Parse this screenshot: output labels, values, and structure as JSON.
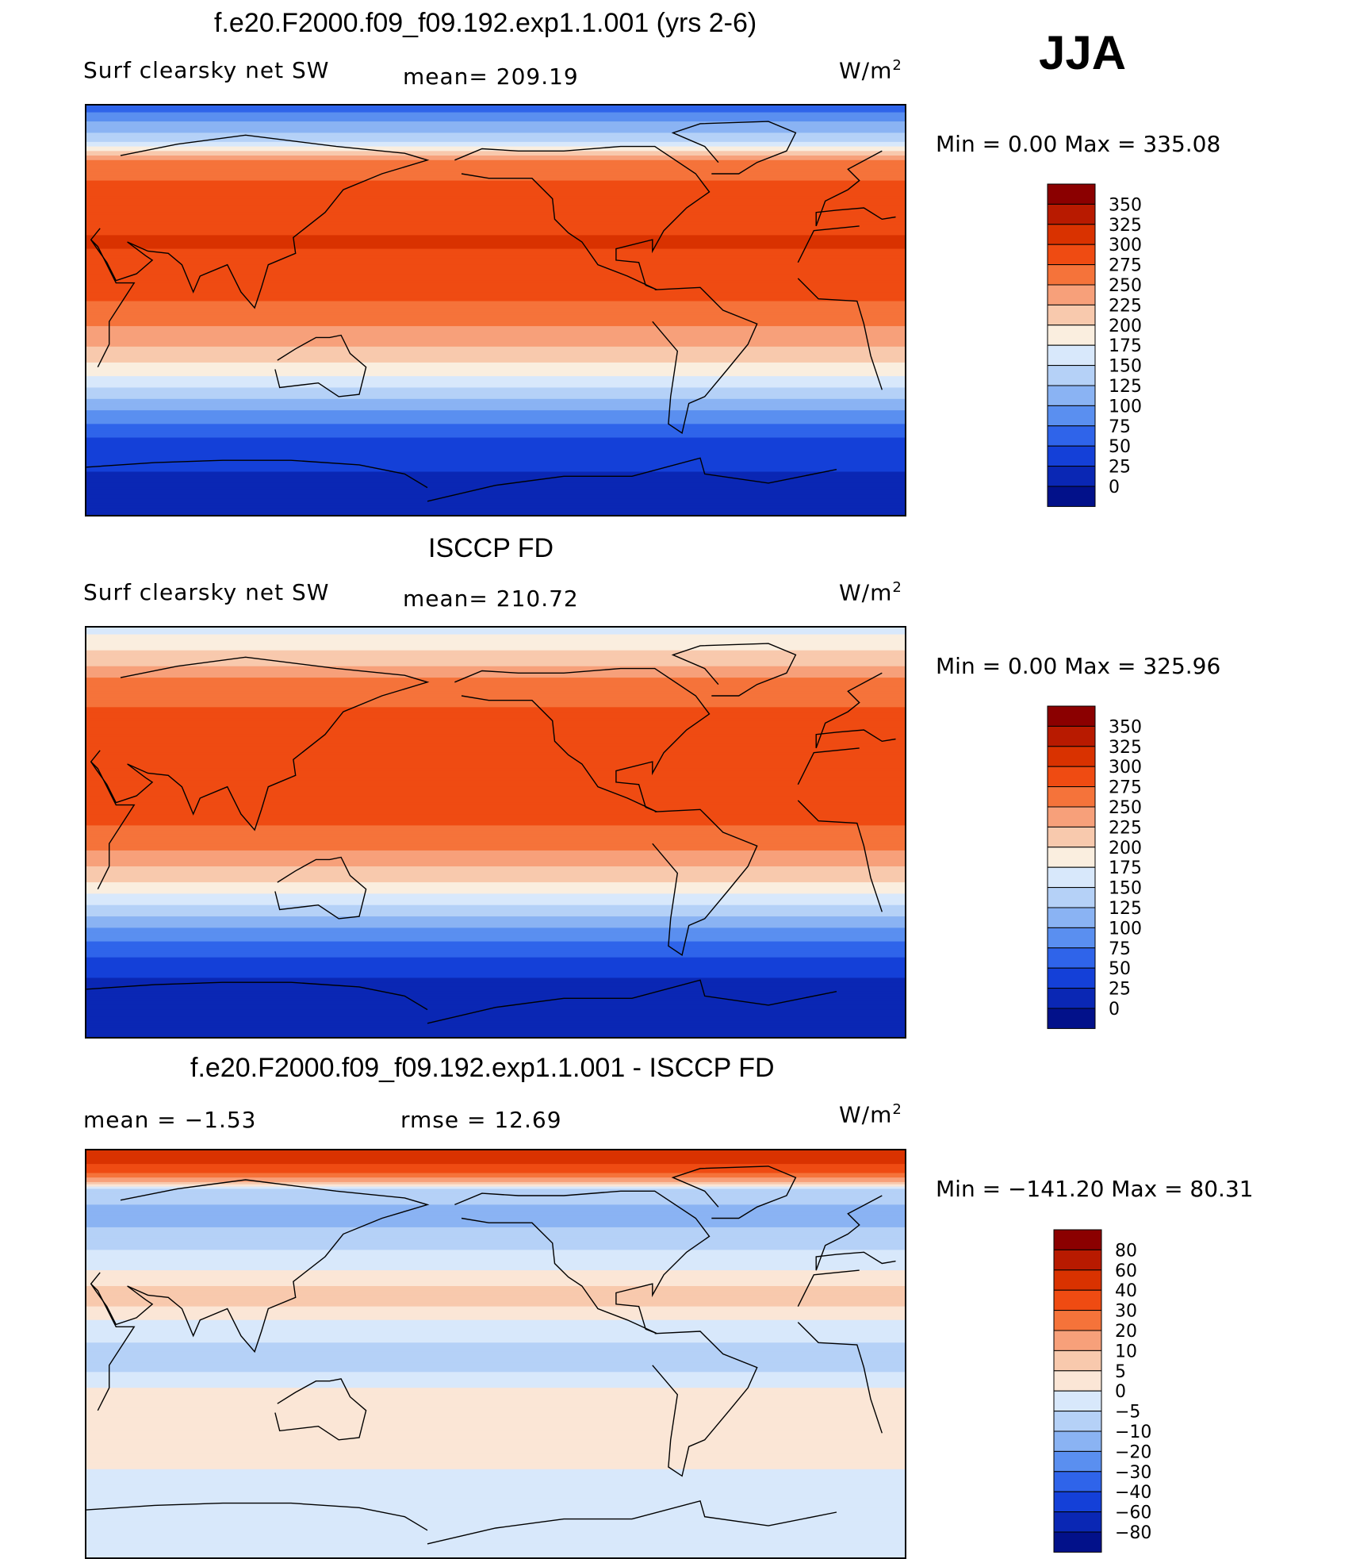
{
  "season": "JJA",
  "chart_data": [
    {
      "type": "heatmap",
      "title": "f.e20.F2000.f09_f09.192.exp1.1.001 (yrs 2-6)",
      "variable": "Surf clearsky net SW",
      "mean_label": "mean= 209.19",
      "mean": 209.19,
      "units_base": "W/m",
      "units_exp": "2",
      "minmax_label": "Min =    0.00 Max = 335.08",
      "min": 0.0,
      "max": 335.08,
      "levels": [
        "350",
        "325",
        "300",
        "275",
        "250",
        "225",
        "200",
        "175",
        "150",
        "125",
        "100",
        "75",
        "50",
        "25",
        "0"
      ],
      "colors": [
        "#8b0000",
        "#b81a00",
        "#d93200",
        "#ef4b12",
        "#f5733a",
        "#f7a07a",
        "#f8c9ad",
        "#faeedf",
        "#d8e8fb",
        "#b5d1f7",
        "#8ab3f3",
        "#5a8ff0",
        "#2f64ea",
        "#1440d8",
        "#0a27b4",
        "#02118a"
      ],
      "lat_profile": [
        [
          90,
          60
        ],
        [
          75,
          140
        ],
        [
          65,
          265
        ],
        [
          45,
          290
        ],
        [
          30,
          302
        ],
        [
          15,
          292
        ],
        [
          0,
          268
        ],
        [
          -12,
          238
        ],
        [
          -22,
          205
        ],
        [
          -32,
          160
        ],
        [
          -42,
          110
        ],
        [
          -52,
          65
        ],
        [
          -62,
          30
        ],
        [
          -90,
          14
        ]
      ]
    },
    {
      "type": "heatmap",
      "title": "ISCCP FD",
      "variable": "Surf clearsky net SW",
      "mean_label": "mean= 210.72",
      "mean": 210.72,
      "units_base": "W/m",
      "units_exp": "2",
      "minmax_label": "Min =    0.00 Max = 325.96",
      "min": 0.0,
      "max": 325.96,
      "levels": [
        "350",
        "325",
        "300",
        "275",
        "250",
        "225",
        "200",
        "175",
        "150",
        "125",
        "100",
        "75",
        "50",
        "25",
        "0"
      ],
      "colors": [
        "#8b0000",
        "#b81a00",
        "#d93200",
        "#ef4b12",
        "#f5733a",
        "#f7a07a",
        "#f8c9ad",
        "#faeedf",
        "#d8e8fb",
        "#b5d1f7",
        "#8ab3f3",
        "#5a8ff0",
        "#2f64ea",
        "#1440d8",
        "#0a27b4",
        "#02118a"
      ],
      "lat_profile": [
        [
          90,
          165
        ],
        [
          75,
          215
        ],
        [
          65,
          262
        ],
        [
          45,
          288
        ],
        [
          30,
          298
        ],
        [
          15,
          292
        ],
        [
          0,
          270
        ],
        [
          -12,
          238
        ],
        [
          -22,
          198
        ],
        [
          -32,
          150
        ],
        [
          -42,
          100
        ],
        [
          -52,
          58
        ],
        [
          -62,
          26
        ],
        [
          -90,
          14
        ]
      ]
    },
    {
      "type": "heatmap",
      "title": "f.e20.F2000.f09_f09.192.exp1.1.001 - ISCCP FD",
      "mean_label": "mean =   −1.53",
      "mean": -1.53,
      "rmse_label": "rmse =   12.69",
      "rmse": 12.69,
      "units_base": "W/m",
      "units_exp": "2",
      "minmax_label": "Min = −141.20 Max =   80.31",
      "min": -141.2,
      "max": 80.31,
      "levels": [
        "80",
        "60",
        "40",
        "30",
        "20",
        "10",
        "5",
        "0",
        "−5",
        "−10",
        "−20",
        "−30",
        "−40",
        "−60",
        "−80"
      ],
      "colors": [
        "#8b0000",
        "#b81a00",
        "#d93200",
        "#ef4b12",
        "#f5733a",
        "#f7a07a",
        "#f8c9ad",
        "#fbe6d6",
        "#d8e8fb",
        "#b5d1f7",
        "#8ab3f3",
        "#5a8ff0",
        "#2f64ea",
        "#1440d8",
        "#0a27b4",
        "#02118a"
      ],
      "lat_profile": [
        [
          90,
          55
        ],
        [
          80,
          30
        ],
        [
          72,
          -8
        ],
        [
          60,
          -12
        ],
        [
          40,
          -2
        ],
        [
          25,
          8
        ],
        [
          10,
          -4
        ],
        [
          -5,
          -7
        ],
        [
          -20,
          3
        ],
        [
          -40,
          4
        ],
        [
          -60,
          -3
        ],
        [
          -90,
          -3
        ]
      ]
    }
  ]
}
